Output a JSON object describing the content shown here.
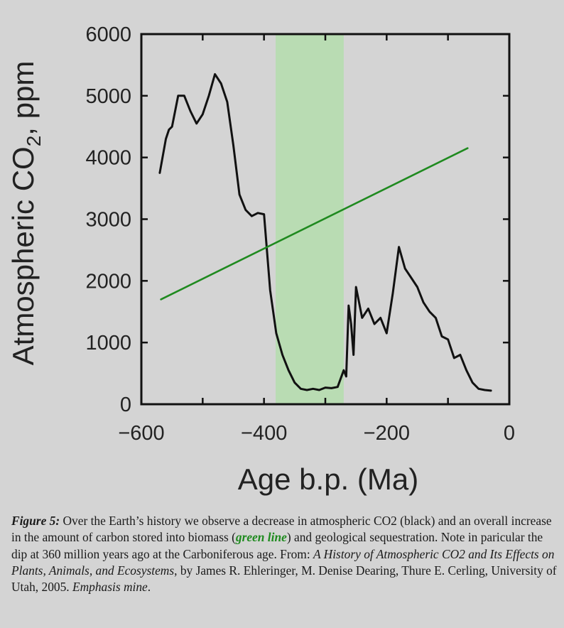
{
  "colors": {
    "background": "#d4d4d4",
    "co2_line": "#111111",
    "trend_line": "#1f8a1f",
    "band": "#b9dcb3",
    "caption_highlight": "#1e8a1e"
  },
  "chart_data": {
    "type": "line",
    "xlabel": "Age b.p. (Ma)",
    "ylabel_main": "Atmospheric CO",
    "ylabel_sub": "2",
    "ylabel_unit": ",  ppm",
    "xlim": [
      -600,
      0
    ],
    "ylim": [
      0,
      6000
    ],
    "x_ticks": [
      -600,
      -400,
      -200,
      0
    ],
    "x_tick_labels": [
      "−600",
      "−400",
      "−200",
      "0"
    ],
    "y_ticks": [
      0,
      1000,
      2000,
      3000,
      4000,
      5000,
      6000
    ],
    "y_tick_labels": [
      "0",
      "1000",
      "2000",
      "3000",
      "4000",
      "5000",
      "6000"
    ],
    "minor_x_ticks": [
      -500,
      -300,
      -100
    ],
    "grid": false,
    "legend": "none",
    "highlight_band": {
      "x_start": -381,
      "x_end": -270
    },
    "series": [
      {
        "color": "#111111",
        "x": [
          -570,
          -560,
          -555,
          -550,
          -540,
          -530,
          -520,
          -510,
          -500,
          -490,
          -480,
          -470,
          -460,
          -450,
          -440,
          -430,
          -420,
          -410,
          -400,
          -390,
          -380,
          -370,
          -360,
          -350,
          -340,
          -330,
          -320,
          -310,
          -300,
          -290,
          -280,
          -270,
          -266,
          -262,
          -258,
          -254,
          -250,
          -240,
          -230,
          -220,
          -210,
          -200,
          -190,
          -180,
          -170,
          -160,
          -150,
          -140,
          -130,
          -120,
          -110,
          -100,
          -90,
          -80,
          -70,
          -60,
          -50,
          -40,
          -30
        ],
        "y": [
          3750,
          4300,
          4450,
          4500,
          5000,
          5000,
          4750,
          4550,
          4700,
          5000,
          5350,
          5200,
          4900,
          4200,
          3400,
          3150,
          3050,
          3100,
          3080,
          1850,
          1150,
          800,
          550,
          350,
          250,
          230,
          250,
          230,
          270,
          260,
          280,
          550,
          450,
          1600,
          1300,
          800,
          1900,
          1400,
          1550,
          1300,
          1400,
          1150,
          1800,
          2550,
          2200,
          2050,
          1900,
          1650,
          1500,
          1400,
          1100,
          1050,
          750,
          800,
          550,
          350,
          250,
          230,
          220
        ]
      },
      {
        "color": "#1f8a1f",
        "x": [
          -568,
          -68
        ],
        "y": [
          1700,
          4150
        ]
      }
    ]
  },
  "caption": {
    "fig_label": "Figure 5:",
    "text1": " Over the Earth’s history we observe a decrease in atmospheric CO2 (black) and an overall increase in the amount of carbon stored into biomass (",
    "highlight": "green line",
    "text2": ") and geological sequestration.  Note in paricular the dip at 360 million years ago at the Carboniferous age. From: ",
    "source_title": "A History of Atmospheric CO2 and Its Effects on Plants, Animals, and Ecosystems",
    "text3": ", by James R. Ehleringer, M. Denise Dearing, Thure E. Cerling, University of Utah, 2005.  ",
    "note": "Emphasis mine"
  }
}
